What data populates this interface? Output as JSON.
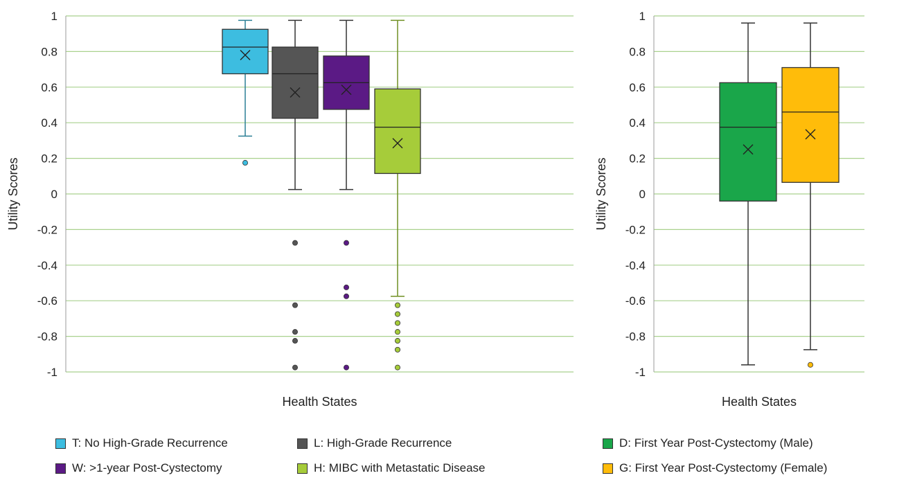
{
  "chart_data": [
    {
      "type": "box",
      "xlabel": "Health States",
      "ylabel": "Utility Scores",
      "ylim": [
        -1,
        1
      ],
      "yticks": [
        "1",
        "0.8",
        "0.6",
        "0.4",
        "0.2",
        "0",
        "-0.2",
        "-0.4",
        "-0.6",
        "-0.8",
        "-1"
      ],
      "grid": true,
      "series": [
        {
          "name": "T: No High-Grade Recurrence",
          "color": "#3dbde0",
          "whisker_low": 0.325,
          "q1": 0.675,
          "median": 0.825,
          "q3": 0.925,
          "whisker_high": 0.975,
          "mean": 0.78,
          "outliers": [
            0.175
          ]
        },
        {
          "name": "L: High-Grade Recurrence",
          "color": "#555555",
          "whisker_low": 0.025,
          "q1": 0.425,
          "median": 0.675,
          "q3": 0.825,
          "whisker_high": 0.975,
          "mean": 0.57,
          "outliers": [
            -0.275,
            -0.625,
            -0.775,
            -0.825,
            -0.975
          ]
        },
        {
          "name": "W: >1-year Post-Cystectomy",
          "color": "#5b1a85",
          "whisker_low": 0.025,
          "q1": 0.475,
          "median": 0.625,
          "q3": 0.775,
          "whisker_high": 0.975,
          "mean": 0.585,
          "outliers": [
            -0.275,
            -0.525,
            -0.575,
            -0.975
          ]
        },
        {
          "name": "H: MIBC with Metastatic Disease",
          "color": "#a6cc3a",
          "whisker_low": -0.575,
          "q1": 0.115,
          "median": 0.375,
          "q3": 0.59,
          "whisker_high": 0.975,
          "mean": 0.285,
          "outliers": [
            -0.625,
            -0.675,
            -0.725,
            -0.775,
            -0.825,
            -0.875,
            -0.975
          ]
        }
      ]
    },
    {
      "type": "box",
      "xlabel": "Health States",
      "ylabel": "Utility Scores",
      "ylim": [
        -1,
        1
      ],
      "yticks": [
        "1",
        "0.8",
        "0.6",
        "0.4",
        "0.2",
        "0",
        "-0.2",
        "-0.4",
        "-0.6",
        "-0.8",
        "-1"
      ],
      "grid": true,
      "series": [
        {
          "name": "D: First Year Post-Cystectomy (Male)",
          "color": "#1aa64a",
          "whisker_low": -0.96,
          "q1": -0.04,
          "median": 0.375,
          "q3": 0.625,
          "whisker_high": 0.96,
          "mean": 0.25,
          "outliers": []
        },
        {
          "name": "G: First Year Post-Cystectomy (Female)",
          "color": "#ffbc0a",
          "whisker_low": -0.875,
          "q1": 0.065,
          "median": 0.46,
          "q3": 0.71,
          "whisker_high": 0.96,
          "mean": 0.335,
          "outliers": [
            -0.96
          ]
        }
      ]
    }
  ],
  "legend": {
    "left": [
      {
        "label": "T: No High-Grade Recurrence",
        "color": "#3dbde0"
      },
      {
        "label": "L: High-Grade Recurrence",
        "color": "#555555"
      },
      {
        "label": "W: >1-year Post-Cystectomy",
        "color": "#5b1a85"
      },
      {
        "label": "H: MIBC with Metastatic Disease",
        "color": "#a6cc3a"
      }
    ],
    "right": [
      {
        "label": "D: First Year Post-Cystectomy (Male)",
        "color": "#1aa64a"
      },
      {
        "label": "G: First Year Post-Cystectomy (Female)",
        "color": "#ffbc0a"
      }
    ]
  },
  "colors": {
    "grid": "#a9d18e",
    "axis": "#999999",
    "whisker": "#333333"
  }
}
